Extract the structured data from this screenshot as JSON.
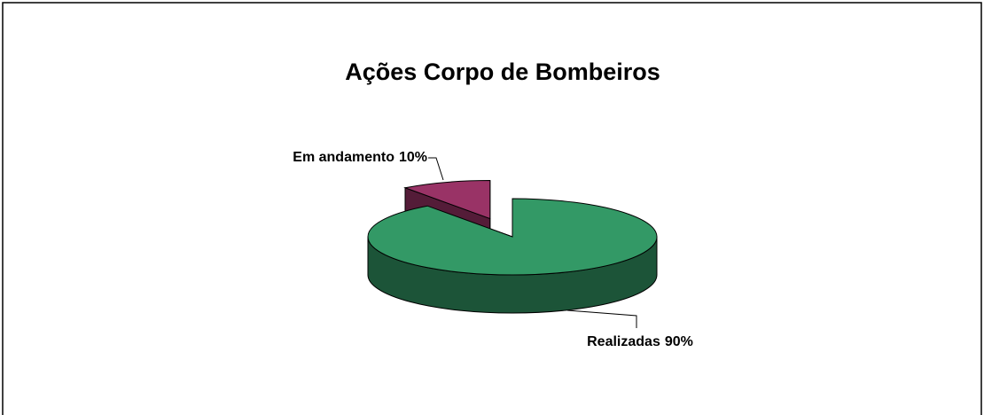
{
  "chart_data": {
    "type": "pie3d",
    "title": "Ações Corpo de Bombeiros",
    "categories": [
      "Realizadas",
      "Em andamento"
    ],
    "values": [
      90,
      10
    ],
    "value_labels": [
      "90%",
      "10%"
    ],
    "colors": [
      "#339966",
      "#993366"
    ],
    "exploded": [
      false,
      true
    ]
  }
}
